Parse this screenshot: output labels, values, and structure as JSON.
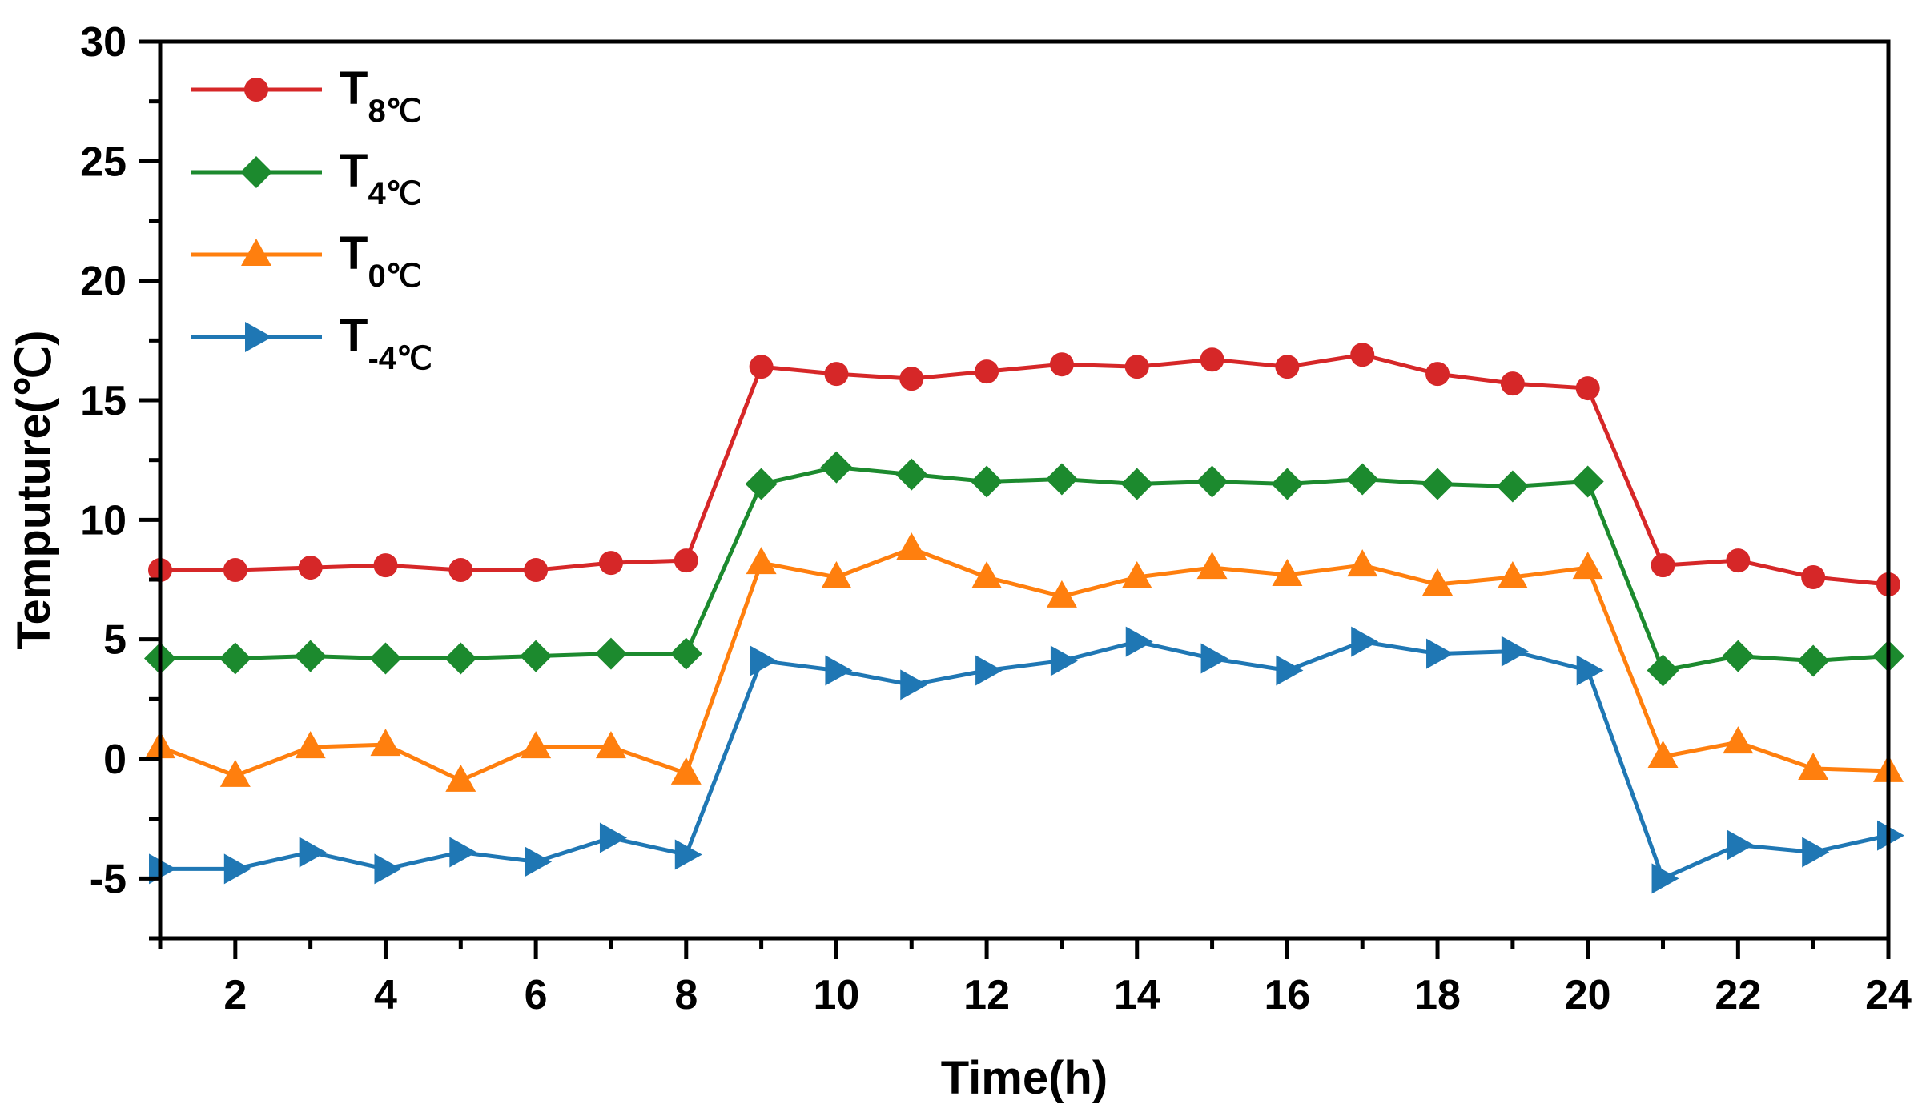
{
  "chart_data": {
    "type": "line",
    "title": "",
    "xlabel": "Time(h)",
    "ylabel": "Temputure(℃)",
    "xlim": [
      1,
      24
    ],
    "ylim": [
      -7.5,
      30
    ],
    "xticks": [
      2,
      4,
      6,
      8,
      10,
      12,
      14,
      16,
      18,
      20,
      22,
      24
    ],
    "yticks": [
      -5,
      0,
      5,
      10,
      15,
      20,
      25,
      30
    ],
    "grid": false,
    "legend_position": "top-left",
    "x": [
      1,
      2,
      3,
      4,
      5,
      6,
      7,
      8,
      9,
      10,
      11,
      12,
      13,
      14,
      15,
      16,
      17,
      18,
      19,
      20,
      21,
      22,
      23,
      24
    ],
    "series": [
      {
        "name": "T8℃",
        "label_main": "T",
        "label_sub": "8℃",
        "color": "#d62728",
        "marker": "circle",
        "values": [
          7.9,
          7.9,
          8.0,
          8.1,
          7.9,
          7.9,
          8.2,
          8.3,
          16.4,
          16.1,
          15.9,
          16.2,
          16.5,
          16.4,
          16.7,
          16.4,
          16.9,
          16.1,
          15.7,
          15.5,
          8.1,
          8.3,
          7.6,
          7.3
        ]
      },
      {
        "name": "T4℃",
        "label_main": "T",
        "label_sub": "4℃",
        "color": "#1c8a2e",
        "marker": "diamond",
        "values": [
          4.2,
          4.2,
          4.3,
          4.2,
          4.2,
          4.3,
          4.4,
          4.4,
          11.5,
          12.2,
          11.9,
          11.6,
          11.7,
          11.5,
          11.6,
          11.5,
          11.7,
          11.5,
          11.4,
          11.6,
          3.7,
          4.3,
          4.1,
          4.3
        ]
      },
      {
        "name": "T0℃",
        "label_main": "T",
        "label_sub": "0℃",
        "color": "#ff7f0e",
        "marker": "triangle-up",
        "values": [
          0.5,
          -0.7,
          0.5,
          0.6,
          -0.9,
          0.5,
          0.5,
          -0.6,
          8.2,
          7.6,
          8.8,
          7.6,
          6.8,
          7.6,
          8.0,
          7.7,
          8.1,
          7.3,
          7.6,
          8.0,
          0.1,
          0.7,
          -0.4,
          -0.5
        ]
      },
      {
        "name": "T-4℃",
        "label_main": "T",
        "label_sub": "-4℃",
        "color": "#1f77b4",
        "marker": "triangle-right",
        "values": [
          -4.6,
          -4.6,
          -3.9,
          -4.6,
          -3.9,
          -4.3,
          -3.3,
          -4.0,
          4.1,
          3.7,
          3.1,
          3.7,
          4.1,
          4.9,
          4.2,
          3.7,
          4.9,
          4.4,
          4.5,
          3.7,
          -5.0,
          -3.6,
          -3.9,
          -3.2
        ]
      }
    ]
  }
}
